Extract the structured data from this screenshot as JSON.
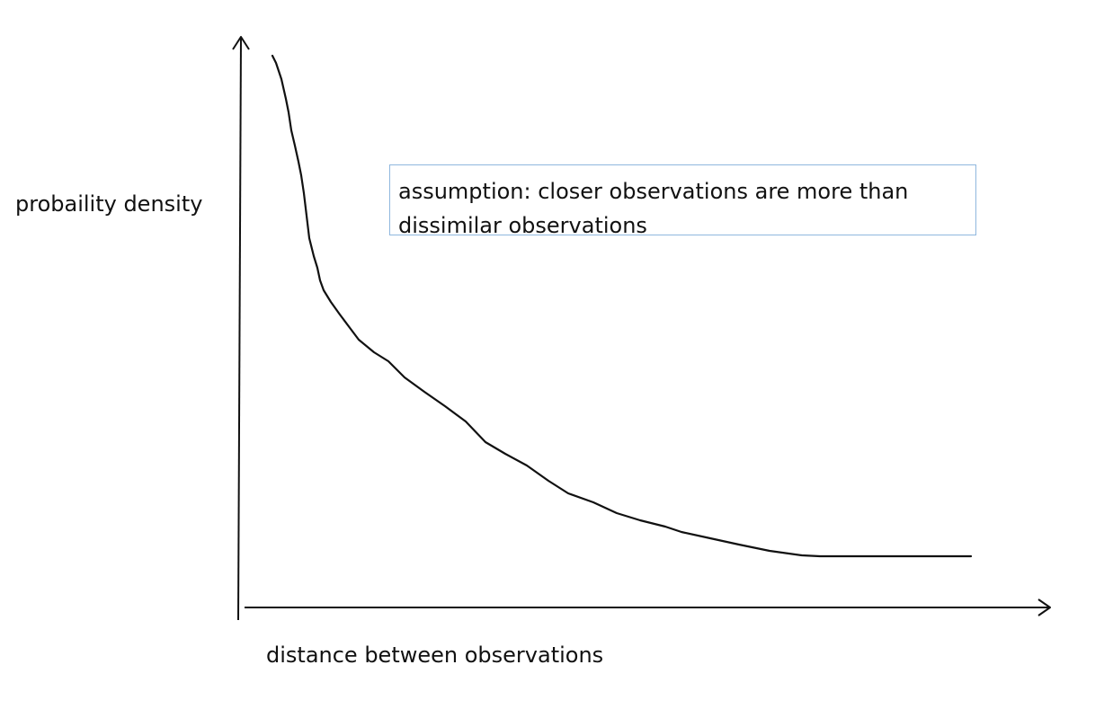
{
  "diagram": {
    "y_axis_label": "probaility density",
    "x_axis_label": "distance between observations",
    "annotation": "assumption: closer observations are more than dissimilar observations",
    "line_color": "#111111",
    "box_border_color": "#8fb7de"
  }
}
